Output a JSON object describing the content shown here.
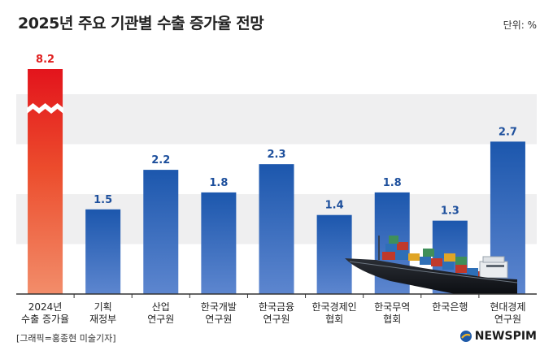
{
  "header": {
    "title": "2025년 주요 기관별 수출 증가율 전망",
    "unit": "단위: %"
  },
  "footer": {
    "credit": "[그래픽=홍종현 미술기자]",
    "brand": "NEWSPIM"
  },
  "colors": {
    "highlight": "#e01e1e",
    "bar": "#1d56a8",
    "label": "#1d4f9c",
    "highlight_label": "#e01e1e"
  },
  "chart_data": {
    "type": "bar",
    "title": "2025년 주요 기관별 수출 증가율 전망",
    "ylabel": "",
    "axis_break": true,
    "categories": [
      [
        "2024년",
        "수출 증가율"
      ],
      [
        "기획",
        "재정부"
      ],
      [
        "산업",
        "연구원"
      ],
      [
        "한국개발",
        "연구원"
      ],
      [
        "한국금융",
        "연구원"
      ],
      [
        "한국경제인",
        "협회"
      ],
      [
        "한국무역",
        "협회"
      ],
      [
        "한국은행"
      ],
      [
        "현대경제",
        "연구원"
      ]
    ],
    "values": [
      8.2,
      1.5,
      2.2,
      1.8,
      2.3,
      1.4,
      1.8,
      1.3,
      2.7
    ],
    "value_labels": [
      "8.2",
      "1.5",
      "2.2",
      "1.8",
      "2.3",
      "1.4",
      "1.8",
      "1.3",
      "2.7"
    ],
    "highlight_index": 0
  }
}
